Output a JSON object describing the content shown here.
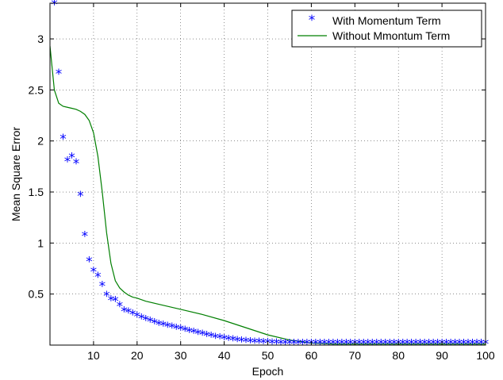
{
  "chart_data": {
    "type": "line",
    "title": "",
    "xlabel": "Epoch",
    "ylabel": "Mean Square Error",
    "xlim": [
      0,
      100
    ],
    "ylim": [
      0,
      3.35
    ],
    "grid": true,
    "legend_position": "top-right",
    "x_ticks": [
      10,
      20,
      30,
      40,
      50,
      60,
      70,
      80,
      90,
      100
    ],
    "x_tick_labels": [
      "10",
      "20",
      "30",
      "40",
      "50",
      "60",
      "70",
      "80",
      "90",
      "100"
    ],
    "y_ticks": [
      0.5,
      1,
      1.5,
      2,
      2.5,
      3
    ],
    "y_tick_labels": [
      "0.5",
      "1",
      "1.5",
      "2",
      "2.5",
      "3"
    ],
    "series": [
      {
        "name": "With Momentum Term",
        "marker": "*",
        "color": "#0000ff",
        "x": [
          1,
          2,
          3,
          4,
          5,
          6,
          7,
          8,
          9,
          10,
          11,
          12,
          13,
          14,
          15,
          16,
          17,
          18,
          19,
          20,
          21,
          22,
          23,
          24,
          25,
          26,
          27,
          28,
          29,
          30,
          31,
          32,
          33,
          34,
          35,
          36,
          37,
          38,
          39,
          40,
          41,
          42,
          43,
          44,
          45,
          46,
          47,
          48,
          49,
          50,
          51,
          52,
          53,
          54,
          55,
          56,
          57,
          58,
          59,
          60,
          61,
          62,
          63,
          64,
          65,
          66,
          67,
          68,
          69,
          70,
          71,
          72,
          73,
          74,
          75,
          76,
          77,
          78,
          79,
          80,
          81,
          82,
          83,
          84,
          85,
          86,
          87,
          88,
          89,
          90,
          91,
          92,
          93,
          94,
          95,
          96,
          97,
          98,
          99,
          100
        ],
        "y": [
          3.34,
          2.66,
          2.02,
          1.8,
          1.84,
          1.78,
          1.46,
          1.07,
          0.82,
          0.72,
          0.67,
          0.58,
          0.48,
          0.44,
          0.43,
          0.38,
          0.33,
          0.32,
          0.3,
          0.28,
          0.26,
          0.245,
          0.23,
          0.215,
          0.2,
          0.19,
          0.18,
          0.17,
          0.16,
          0.15,
          0.14,
          0.13,
          0.12,
          0.11,
          0.1,
          0.09,
          0.08,
          0.07,
          0.065,
          0.06,
          0.05,
          0.045,
          0.04,
          0.035,
          0.03,
          0.028,
          0.025,
          0.022,
          0.02,
          0.018,
          0.016,
          0.014,
          0.012,
          0.011,
          0.01,
          0.01,
          0.01,
          0.01,
          0.01,
          0.01,
          0.01,
          0.01,
          0.01,
          0.01,
          0.01,
          0.01,
          0.01,
          0.01,
          0.01,
          0.01,
          0.01,
          0.01,
          0.01,
          0.01,
          0.01,
          0.01,
          0.01,
          0.01,
          0.01,
          0.01,
          0.01,
          0.01,
          0.01,
          0.01,
          0.01,
          0.01,
          0.01,
          0.01,
          0.01,
          0.01,
          0.01,
          0.01,
          0.01,
          0.01,
          0.01,
          0.01,
          0.01,
          0.01,
          0.01,
          0.01
        ]
      },
      {
        "name": "Without Mmontum Term",
        "marker": "line",
        "color": "#007f00",
        "x": [
          0,
          1,
          2,
          3,
          4,
          5,
          6,
          7,
          8,
          9,
          10,
          11,
          12,
          13,
          14,
          15,
          16,
          17,
          18,
          19,
          20,
          22,
          25,
          30,
          35,
          40,
          45,
          50,
          55,
          60,
          65,
          70,
          80,
          90,
          100
        ],
        "y": [
          2.93,
          2.5,
          2.37,
          2.34,
          2.33,
          2.32,
          2.31,
          2.29,
          2.26,
          2.2,
          2.08,
          1.85,
          1.5,
          1.1,
          0.8,
          0.63,
          0.56,
          0.52,
          0.49,
          0.47,
          0.46,
          0.43,
          0.4,
          0.35,
          0.3,
          0.24,
          0.17,
          0.1,
          0.05,
          0.02,
          0.01,
          0.01,
          0.01,
          0.01,
          0.01
        ]
      }
    ]
  }
}
